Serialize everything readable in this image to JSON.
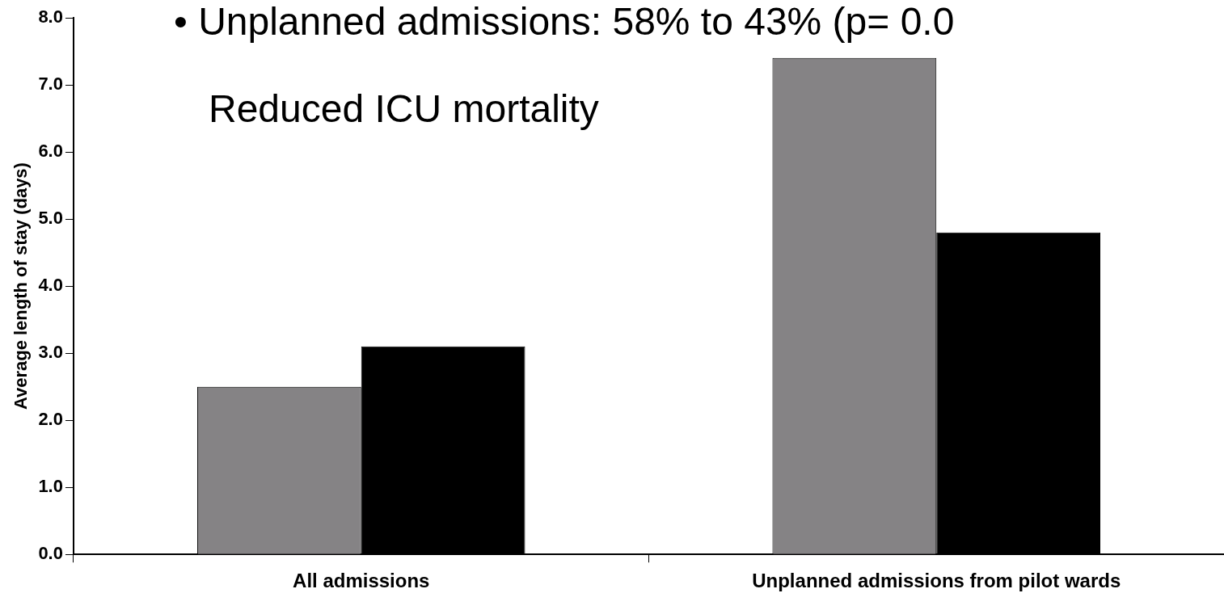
{
  "chart_data": {
    "type": "bar",
    "ylabel": "Average length of stay (days)",
    "categories": [
      "All admissions",
      "Unplanned admissions from pilot wards"
    ],
    "series": [
      {
        "color": "#858385",
        "values": [
          2.5,
          7.4
        ]
      },
      {
        "color": "#000000",
        "values": [
          3.1,
          4.8
        ]
      }
    ],
    "ylim": [
      0,
      8
    ],
    "yticks": [
      {
        "value": 0,
        "label": "0.0"
      },
      {
        "value": 1,
        "label": "1.0"
      },
      {
        "value": 2,
        "label": "2.0"
      },
      {
        "value": 3,
        "label": "3.0"
      },
      {
        "value": 4,
        "label": "4.0"
      },
      {
        "value": 5,
        "label": "5.0"
      },
      {
        "value": 6,
        "label": "6.0"
      },
      {
        "value": 7,
        "label": "7.0"
      },
      {
        "value": 8,
        "label": "8.0"
      }
    ],
    "annotations": [
      "• Unplanned admissions: 58% to 43% (p= 0.0",
      "Reduced ICU mortality"
    ],
    "grid": false,
    "legend": false
  }
}
